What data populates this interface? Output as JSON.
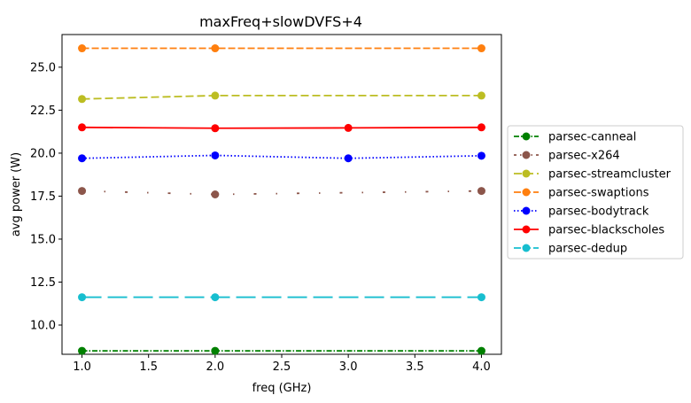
{
  "chart_data": {
    "type": "line",
    "title": "maxFreq+slowDVFS+4",
    "xlabel": "freq (GHz)",
    "ylabel": "avg power (W)",
    "xlim": [
      0.85,
      4.15
    ],
    "ylim": [
      8.3,
      26.9
    ],
    "xticks": [
      1.0,
      1.5,
      2.0,
      2.5,
      3.0,
      3.5,
      4.0
    ],
    "xtick_labels": [
      "1.0",
      "1.5",
      "2.0",
      "2.5",
      "3.0",
      "3.5",
      "4.0"
    ],
    "yticks": [
      10.0,
      12.5,
      15.0,
      17.5,
      20.0,
      22.5,
      25.0
    ],
    "ytick_labels": [
      "10.0",
      "12.5",
      "15.0",
      "17.5",
      "20.0",
      "22.5",
      "25.0"
    ],
    "grid": false,
    "legend_position": "right, outside plot",
    "series": [
      {
        "name": "parsec-canneal",
        "color": "#008000",
        "dash": "dashdot",
        "x": [
          1.0,
          2.0,
          4.0
        ],
        "y": [
          8.5,
          8.5,
          8.5
        ]
      },
      {
        "name": "parsec-x264",
        "color": "#8c564b",
        "dash": "sparse-dashdot",
        "x": [
          1.0,
          2.0,
          4.0
        ],
        "y": [
          17.8,
          17.6,
          17.8
        ]
      },
      {
        "name": "parsec-streamcluster",
        "color": "#bcbd22",
        "dash": "dashed",
        "x": [
          1.0,
          2.0,
          4.0
        ],
        "y": [
          23.15,
          23.35,
          23.35
        ]
      },
      {
        "name": "parsec-swaptions",
        "color": "#ff7f0e",
        "dash": "dashed-long",
        "x": [
          1.0,
          2.0,
          4.0
        ],
        "y": [
          26.1,
          26.1,
          26.1
        ]
      },
      {
        "name": "parsec-bodytrack",
        "color": "#0000ff",
        "dash": "dotted",
        "x": [
          1.0,
          2.0,
          3.0,
          4.0
        ],
        "y": [
          19.7,
          19.87,
          19.7,
          19.85
        ]
      },
      {
        "name": "parsec-blackscholes",
        "color": "#ff0000",
        "dash": "solid",
        "x": [
          1.0,
          2.0,
          3.0,
          4.0
        ],
        "y": [
          21.5,
          21.45,
          21.47,
          21.5
        ]
      },
      {
        "name": "parsec-dedup",
        "color": "#17becf",
        "dash": "longdash",
        "x": [
          1.0,
          2.0,
          4.0
        ],
        "y": [
          11.62,
          11.62,
          11.62
        ]
      }
    ]
  }
}
